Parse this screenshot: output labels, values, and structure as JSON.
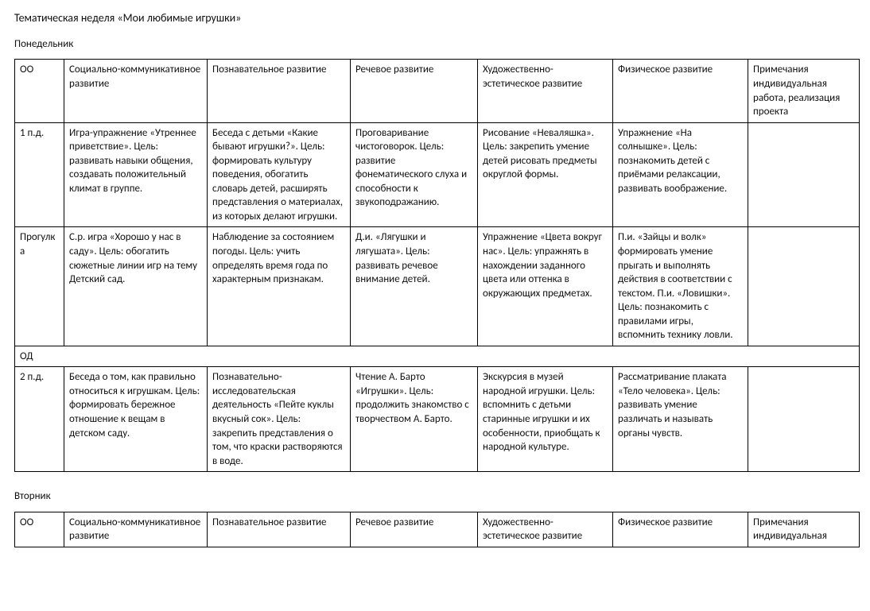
{
  "title": "Тематическая неделя «Мои любимые игрушки»",
  "columns": [
    "ОО",
    "Социально-коммуникативное развитие",
    "Познавательное развитие",
    "Речевое развитие",
    "Художественно-эстетическое развитие",
    "Физическое развитие",
    "Примечания индивидуальная работа, реализация проекта"
  ],
  "columns2": [
    "ОО",
    "Социально-коммуникативное развитие",
    "Познавательное развитие",
    "Речевое развитие",
    "Художественно-эстетическое развитие",
    "Физическое развитие",
    "Примечания индивидуальная"
  ],
  "monday": {
    "name": "Понедельник",
    "rows": {
      "r1": {
        "label": "1 п.д.",
        "c1": "Игра-упражнение «Утреннее приветствие». Цель: развивать навыки общения, создавать положительный климат в группе.",
        "c2": "Беседа с детьми «Какие бывают игрушки?». Цель: формировать культуру поведения, обогатить словарь детей, расширять представления о материалах, из которых делают игрушки.",
        "c3": "Проговаривание чистоговорок. Цель: развитие фонематического слуха и способности к звукоподражанию.",
        "c4": "Рисование «Неваляшка». Цель: закрепить умение детей рисовать предметы округлой формы.",
        "c5": "Упражнение «На солнышке». Цель: познакомить детей с приёмами релаксации, развивать воображение.",
        "c6": ""
      },
      "r2": {
        "label": "Прогулка",
        "c1": "С.р. игра «Хорошо у нас в саду». Цель: обогатить сюжетные линии игр на тему Детский сад.",
        "c2": "Наблюдение за состоянием погоды. Цель: учить определять время года по характерным признакам.",
        "c3": "Д.и. «Лягушки и лягушата». Цель: развивать речевое внимание детей.",
        "c4": "Упражнение «Цвета вокруг нас». Цель: упражнять в нахождении заданного цвета или оттенка в окружающих предметах.",
        "c5": "П.и. «Зайцы и волк» формировать умение прыгать и выполнять действия в соответствии с текстом. П.и. «Ловишки». Цель: познакомить с правилами игры, вспомнить технику ловли.",
        "c6": ""
      },
      "r3": {
        "label": "ОД"
      },
      "r4": {
        "label": "2 п.д.",
        "c1": "Беседа о том, как правильно относиться к игрушкам. Цель: формировать бережное отношение к вещам в детском саду.",
        "c2": "Познавательно-исследовательская деятельность «Пейте куклы вкусный сок». Цель: закрепить представления о том, что краски растворяются в воде.",
        "c3": "Чтение А. Барто «Игрушки». Цель: продолжить знакомство с творчеством А. Барто.",
        "c4": "Экскурсия в музей народной игрушки. Цель: вспомнить с детьми старинные игрушки и их особенности, приобщать к народной культуре.",
        "c5": "Рассматривание плаката «Тело человека». Цель: развивать умение различать и называть органы чувств.",
        "c6": ""
      }
    }
  },
  "tuesday": {
    "name": "Вторник"
  }
}
